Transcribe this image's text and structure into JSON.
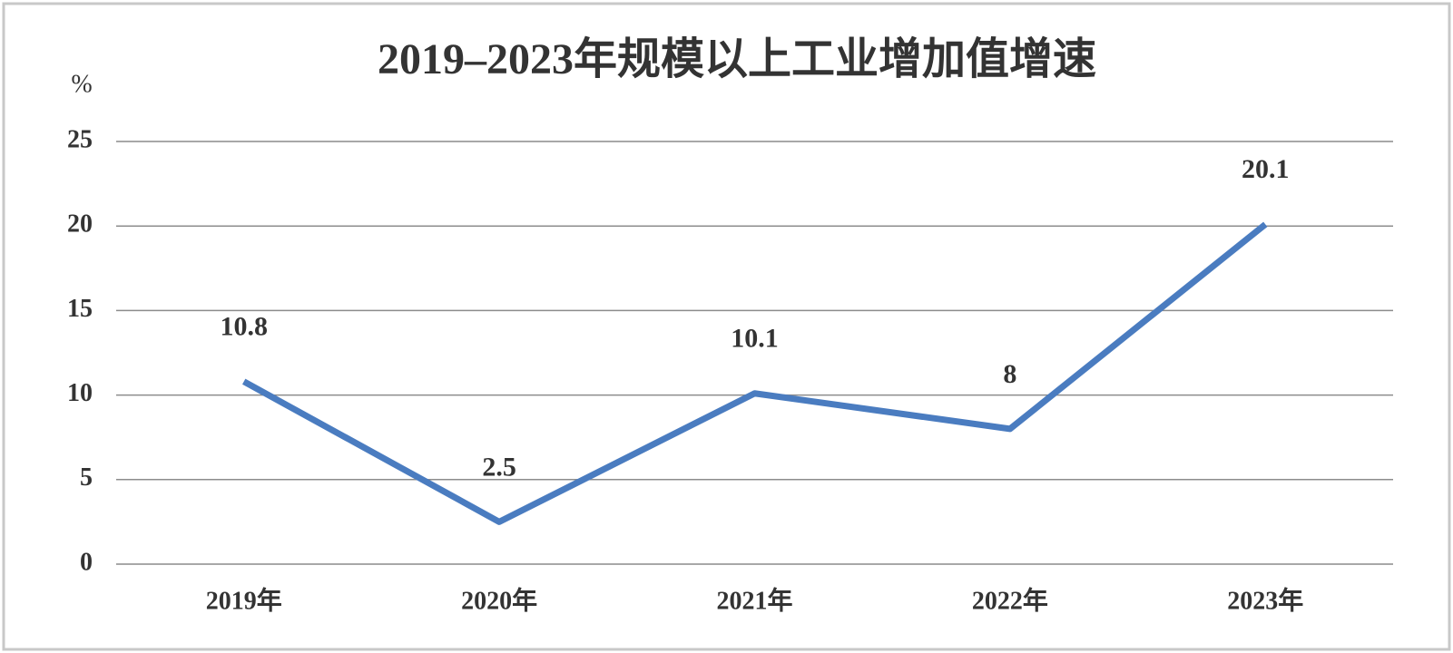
{
  "chart_data": {
    "type": "line",
    "title": "2019–2023年规模以上工业增加值增速",
    "y_label": "%",
    "categories": [
      "2019年",
      "2020年",
      "2021年",
      "2022年",
      "2023年"
    ],
    "values": [
      10.8,
      2.5,
      10.1,
      8,
      20.1
    ],
    "color": "#4a7cc0",
    "ylim": [
      0,
      25
    ],
    "yticks": [
      0,
      5,
      10,
      15,
      20,
      25
    ],
    "grid": true
  }
}
